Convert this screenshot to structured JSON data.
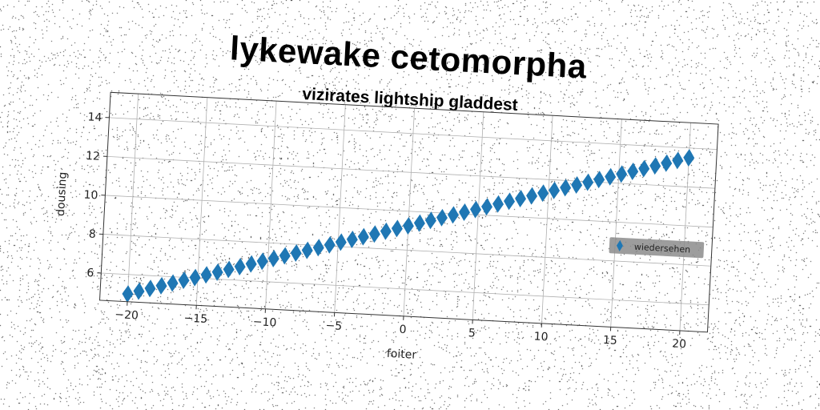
{
  "title": "lykewake cetomorpha",
  "subtitle": "vizirates lightship gladdest",
  "colors": {
    "series": "#1f77b4",
    "grid": "#b0b0b0",
    "legend_bg": "#8c8c8c"
  },
  "chart_data": {
    "type": "scatter",
    "marker": "diamond",
    "xlabel": "foiter",
    "ylabel": "dousing",
    "xlim": [
      -22,
      22
    ],
    "ylim": [
      4.6,
      15.3
    ],
    "xticks": [
      -20,
      -15,
      -10,
      -5,
      0,
      5,
      10,
      15,
      20
    ],
    "yticks": [
      6,
      8,
      10,
      12,
      14
    ],
    "grid": true,
    "legend_position": "right",
    "series": [
      {
        "name": "wiedersehen",
        "x": [
          -20,
          -19.2,
          -18.4,
          -17.6,
          -16.8,
          -16,
          -15.2,
          -14.4,
          -13.6,
          -12.8,
          -12,
          -11.2,
          -10.4,
          -9.6,
          -8.8,
          -8,
          -7.2,
          -6.4,
          -5.6,
          -4.8,
          -4,
          -3.2,
          -2.4,
          -1.6,
          -0.8,
          0,
          0.8,
          1.6,
          2.4,
          3.2,
          4,
          4.8,
          5.6,
          6.4,
          7.2,
          8,
          8.8,
          9.6,
          10.4,
          11.2,
          12,
          12.8,
          13.6,
          14.4,
          15.2,
          16,
          16.8,
          17.6,
          18.4,
          19.2,
          20
        ],
        "y": [
          5.0,
          5.17,
          5.34,
          5.51,
          5.68,
          5.85,
          6.02,
          6.19,
          6.36,
          6.53,
          6.7,
          6.87,
          7.04,
          7.21,
          7.38,
          7.55,
          7.72,
          7.89,
          8.06,
          8.23,
          8.4,
          8.57,
          8.74,
          8.91,
          9.08,
          9.25,
          9.42,
          9.59,
          9.76,
          9.93,
          10.1,
          10.27,
          10.44,
          10.61,
          10.78,
          10.95,
          11.12,
          11.29,
          11.46,
          11.63,
          11.8,
          11.97,
          12.14,
          12.31,
          12.48,
          12.65,
          12.82,
          12.99,
          13.16,
          13.33,
          13.5
        ]
      }
    ]
  }
}
